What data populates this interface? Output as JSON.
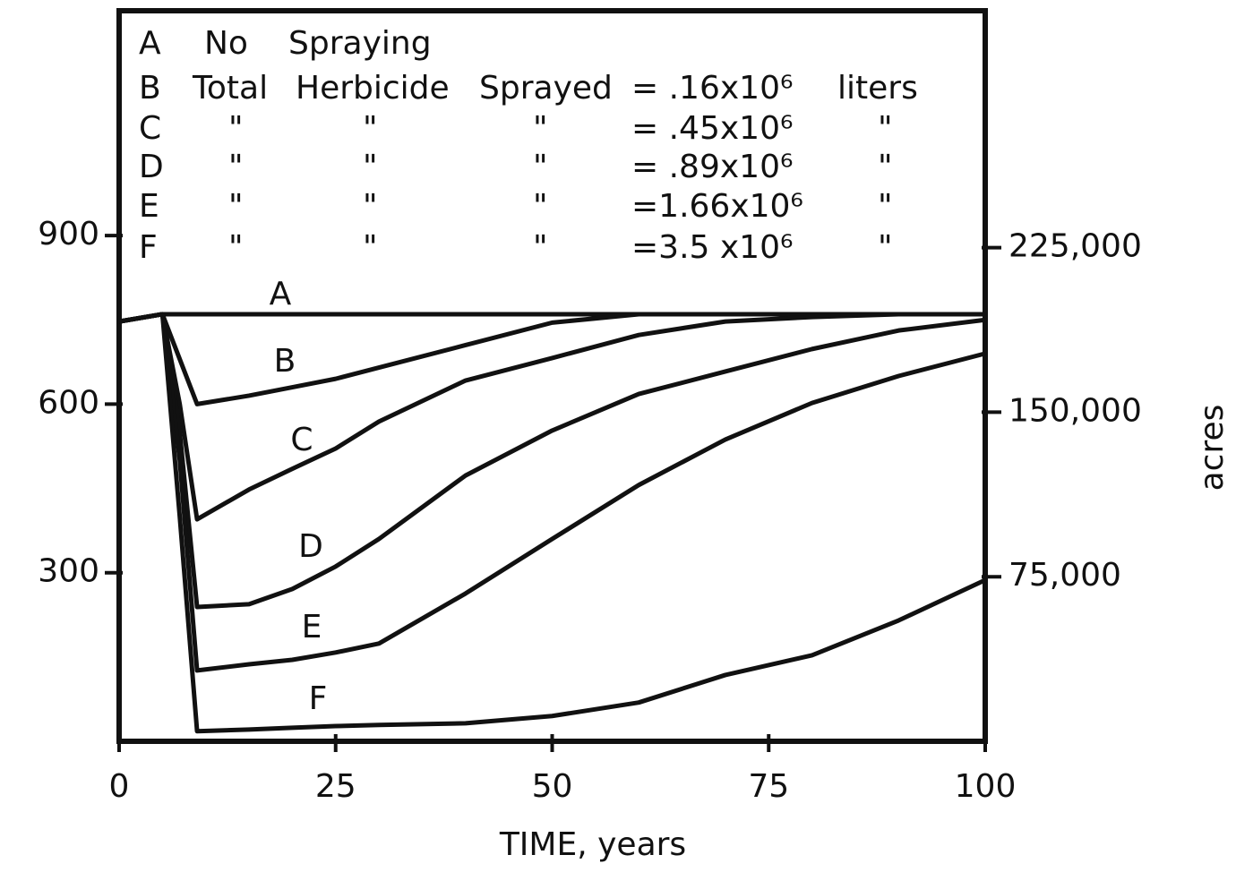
{
  "chart_data": {
    "type": "line",
    "xlabel": "TIME, years",
    "y2label": "acres",
    "x": [
      0,
      5,
      7,
      9,
      15,
      20,
      25,
      30,
      40,
      50,
      60,
      70,
      80,
      90,
      100
    ],
    "series": [
      {
        "name": "A",
        "color": "#111111",
        "values": [
          747,
          760,
          760,
          760,
          760,
          760,
          760,
          760,
          760,
          760,
          760,
          760,
          760,
          760,
          760
        ]
      },
      {
        "name": "B",
        "color": "#111111",
        "values": [
          747,
          760,
          680,
          600,
          615,
          630,
          645,
          665,
          705,
          745,
          760,
          760,
          760,
          760,
          760
        ]
      },
      {
        "name": "C",
        "color": "#111111",
        "values": [
          747,
          760,
          600,
          395,
          448,
          485,
          521,
          569,
          642,
          682,
          723,
          747,
          755,
          760,
          760
        ]
      },
      {
        "name": "D",
        "color": "#111111",
        "values": [
          747,
          760,
          550,
          239,
          244,
          271,
          311,
          360,
          473,
          553,
          618,
          658,
          698,
          731,
          750
        ]
      },
      {
        "name": "E",
        "color": "#111111",
        "values": [
          747,
          760,
          500,
          126,
          137,
          145,
          158,
          174,
          263,
          360,
          456,
          537,
          602,
          650,
          690
        ]
      },
      {
        "name": "F",
        "color": "#111111",
        "values": [
          747,
          760,
          400,
          18,
          21,
          24,
          27,
          29,
          32,
          45,
          69,
          118,
          153,
          215,
          287
        ]
      }
    ],
    "xlim": [
      0,
      100
    ],
    "xticks": [
      0,
      25,
      50,
      75,
      100
    ],
    "ylim": [
      0,
      1300
    ],
    "yticks": [
      300,
      600,
      900
    ],
    "y2lim": [
      0,
      333000
    ],
    "y2ticks": [
      {
        "value": 75000,
        "label": "75,000"
      },
      {
        "value": 150000,
        "label": "150,000"
      },
      {
        "value": 225000,
        "label": "225,000"
      }
    ],
    "legend_rows": [
      [
        "A",
        "No",
        "Spraying"
      ],
      [
        "B",
        "Total",
        "Herbicide",
        "Sprayed",
        "= .16x10⁶",
        "liters"
      ],
      [
        "C",
        "\"",
        "\"",
        "\"",
        "= .45x10⁶",
        "\""
      ],
      [
        "D",
        "\"",
        "\"",
        "\"",
        "= .89x10⁶",
        "\""
      ],
      [
        "E",
        "\"",
        "\"",
        "\"",
        "=1.66x10⁶",
        "\""
      ],
      [
        "F",
        "\"",
        "\"",
        "\"",
        "=3.5 x10⁶",
        "\""
      ]
    ]
  }
}
